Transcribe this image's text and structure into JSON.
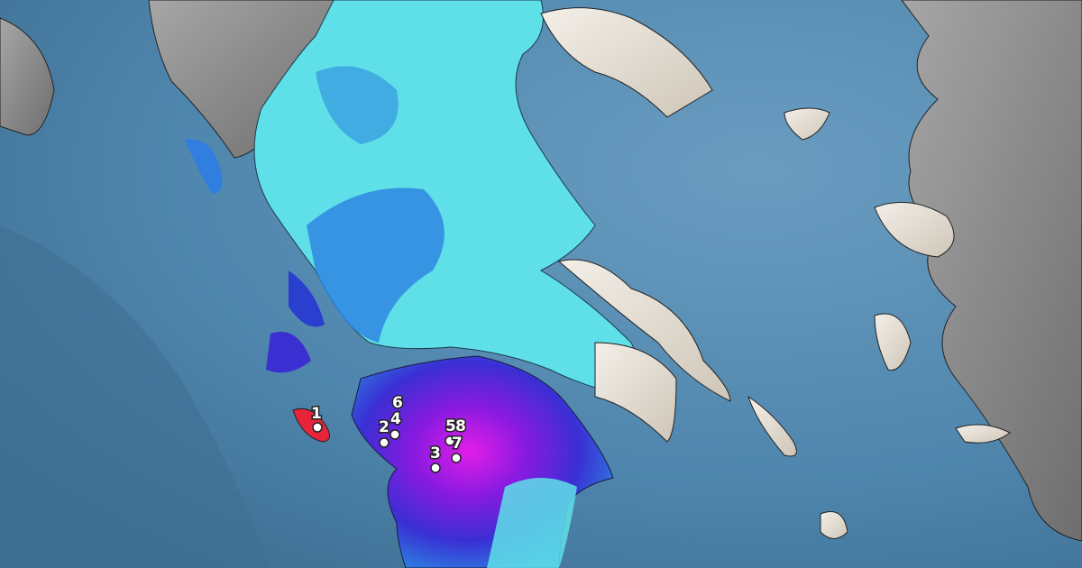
{
  "map": {
    "colors": {
      "sea": "#5a8fb5",
      "deep_sea": "#3f6f93",
      "land_no_data": "#8c8c8c",
      "light_cyan": "#5fe3e6",
      "cyan": "#3cc8dc",
      "blue": "#2e7ee0",
      "dark_blue": "#2a3fd0",
      "purple": "#6a1ad8",
      "magenta": "#d21ae6",
      "red": "#e8243a",
      "snow_land": "#eae6de"
    },
    "stations": [
      {
        "label": "1"
      },
      {
        "label": "2"
      },
      {
        "label": "3"
      },
      {
        "label": "4"
      },
      {
        "label": "5"
      },
      {
        "label": "6"
      },
      {
        "label": "7"
      },
      {
        "label": "8"
      }
    ]
  }
}
